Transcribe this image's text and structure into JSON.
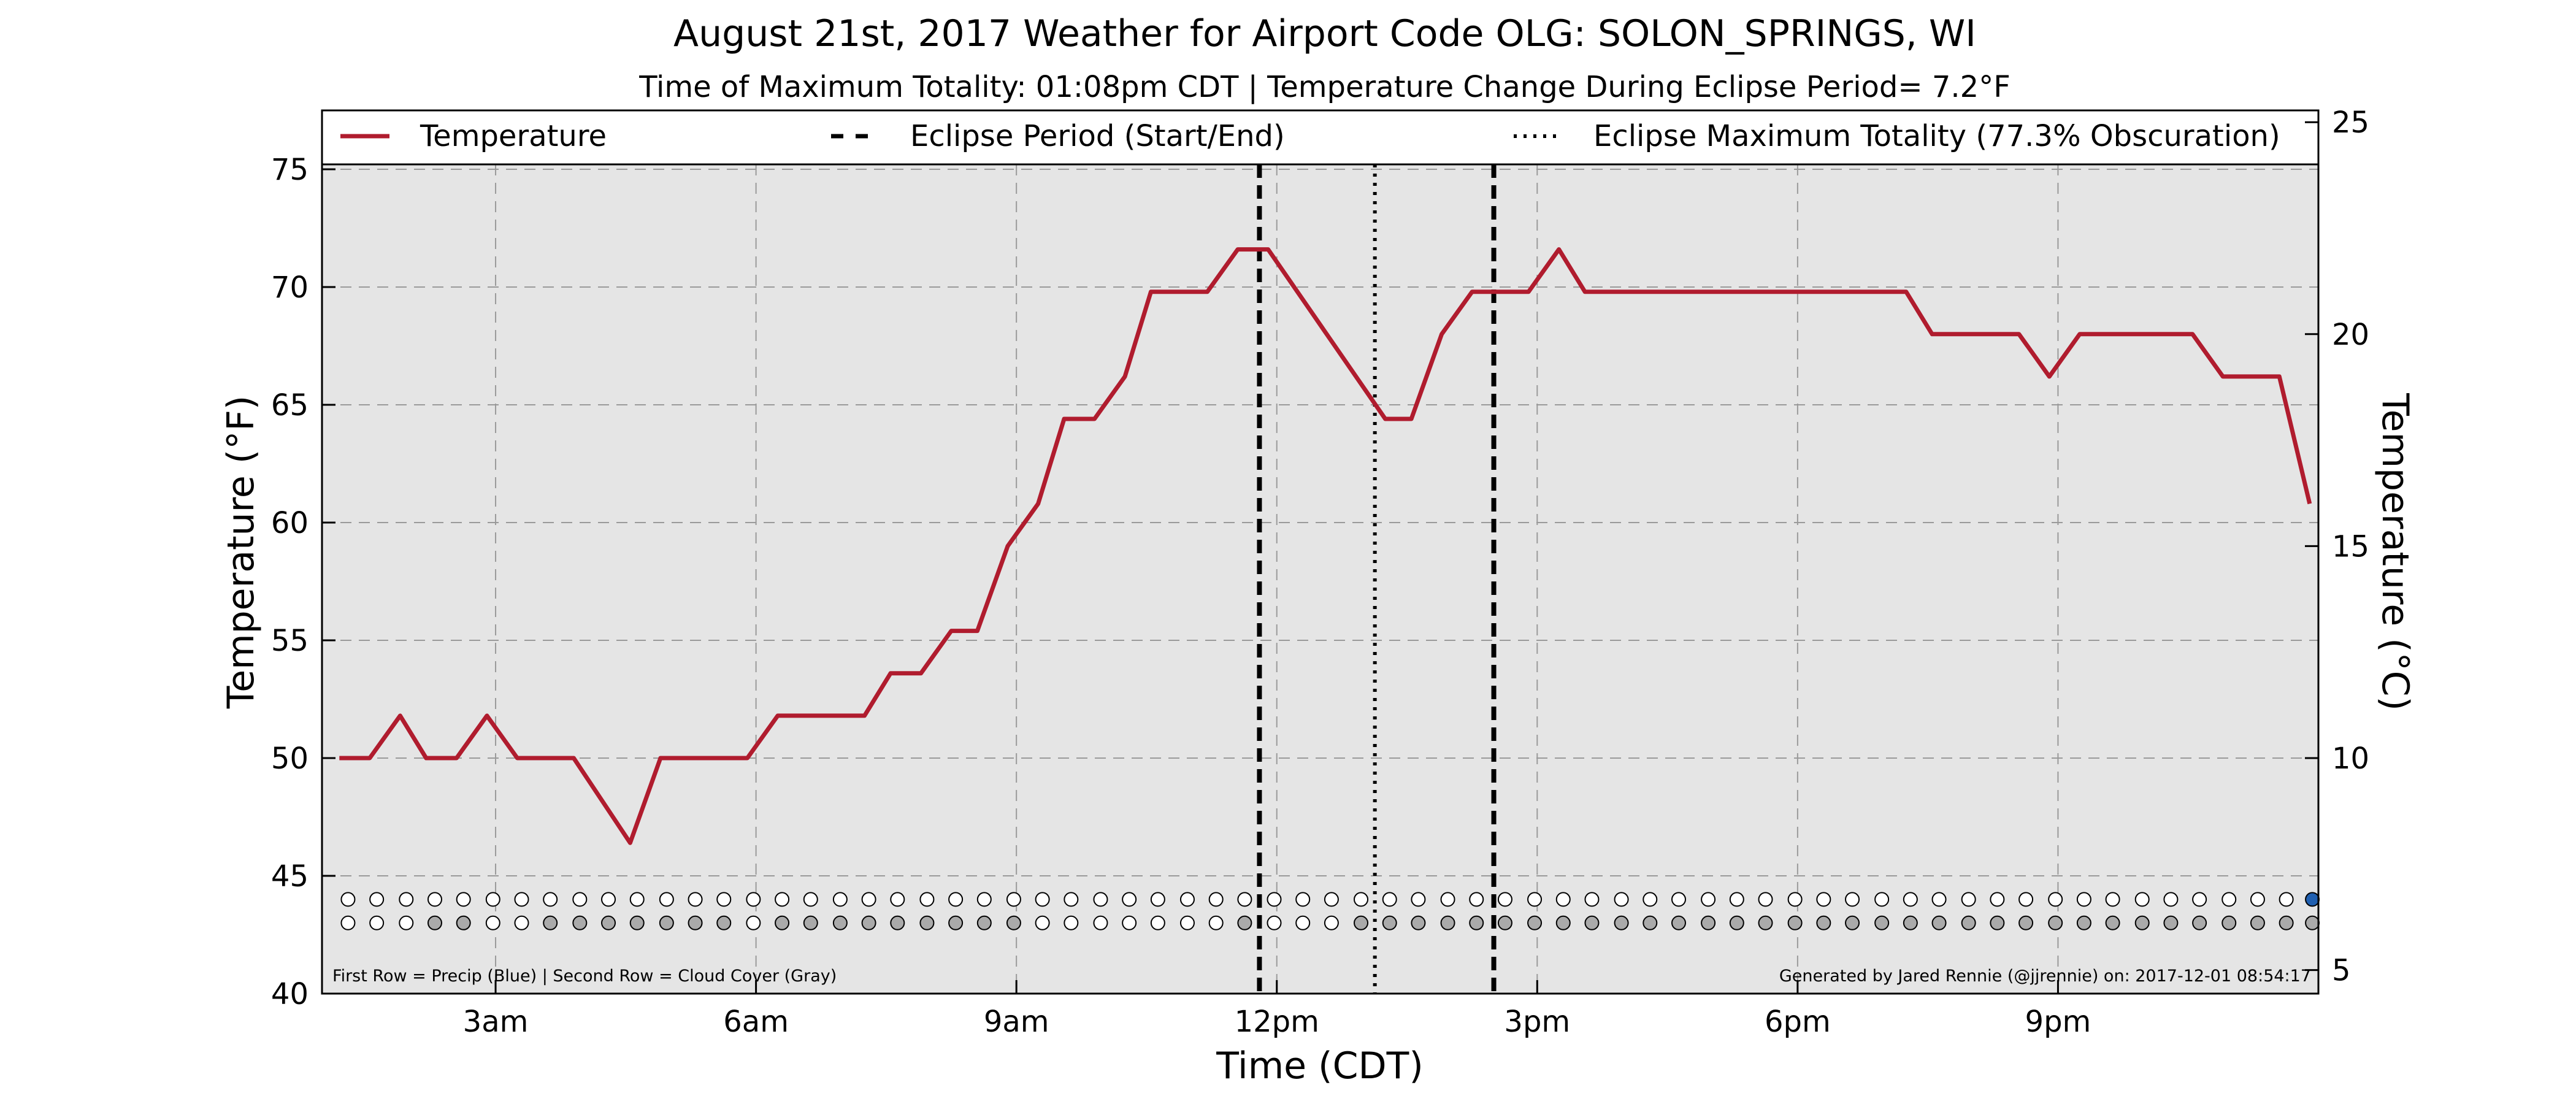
{
  "chart_data": {
    "type": "line",
    "title": "August 21st, 2017 Weather for Airport Code OLG: SOLON_SPRINGS, WI",
    "subtitle": "Time of Maximum Totality: 01:08pm CDT | Temperature Change During Eclipse Period= 7.2°F",
    "xlabel": "Time (CDT)",
    "ylabel": "Temperature (°F)",
    "ylabel_right": "Temperature (°C)",
    "xlim": [
      1.0,
      24.0
    ],
    "ylim": [
      40,
      77.5
    ],
    "ylim_right_c": [
      4.44,
      25.28
    ],
    "grid": true,
    "x_ticks": [
      {
        "x": 3,
        "label": "3am"
      },
      {
        "x": 6,
        "label": "6am"
      },
      {
        "x": 9,
        "label": "9am"
      },
      {
        "x": 12,
        "label": "12pm"
      },
      {
        "x": 15,
        "label": "3pm"
      },
      {
        "x": 18,
        "label": "6pm"
      },
      {
        "x": 21,
        "label": "9pm"
      }
    ],
    "y_ticks": [
      {
        "y": 40,
        "label": "40"
      },
      {
        "y": 45,
        "label": "45"
      },
      {
        "y": 50,
        "label": "50"
      },
      {
        "y": 55,
        "label": "55"
      },
      {
        "y": 60,
        "label": "60"
      },
      {
        "y": 65,
        "label": "65"
      },
      {
        "y": 70,
        "label": "70"
      },
      {
        "y": 75,
        "label": "75"
      }
    ],
    "y_ticks_right": [
      {
        "c": 5,
        "label": "5"
      },
      {
        "c": 10,
        "label": "10"
      },
      {
        "c": 15,
        "label": "15"
      },
      {
        "c": 20,
        "label": "20"
      },
      {
        "c": 25,
        "label": "25"
      }
    ],
    "legend": {
      "placement": "top",
      "entries": [
        {
          "label": "Temperature",
          "style": "solid",
          "color": "#b01c2e"
        },
        {
          "label": "Eclipse Period (Start/End)",
          "style": "dashed",
          "color": "#000000"
        },
        {
          "label": "Eclipse Maximum Totality (77.3% Obscuration)",
          "style": "dotted",
          "color": "#000000"
        }
      ]
    },
    "series": [
      {
        "name": "Temperature",
        "color": "#b01c2e",
        "points": [
          [
            1.2,
            50.0
          ],
          [
            1.55,
            50.0
          ],
          [
            1.9,
            51.8
          ],
          [
            2.2,
            50.0
          ],
          [
            2.55,
            50.0
          ],
          [
            2.9,
            51.8
          ],
          [
            3.25,
            50.0
          ],
          [
            3.55,
            50.0
          ],
          [
            3.9,
            50.0
          ],
          [
            4.55,
            46.4
          ],
          [
            4.9,
            50.0
          ],
          [
            5.25,
            50.0
          ],
          [
            5.9,
            50.0
          ],
          [
            6.25,
            51.8
          ],
          [
            6.9,
            51.8
          ],
          [
            7.25,
            51.8
          ],
          [
            7.55,
            53.6
          ],
          [
            7.9,
            53.6
          ],
          [
            8.25,
            55.4
          ],
          [
            8.55,
            55.4
          ],
          [
            8.9,
            59.0
          ],
          [
            9.25,
            60.8
          ],
          [
            9.55,
            64.4
          ],
          [
            9.9,
            64.4
          ],
          [
            10.25,
            66.2
          ],
          [
            10.55,
            69.8
          ],
          [
            11.2,
            69.8
          ],
          [
            11.55,
            71.6
          ],
          [
            11.9,
            71.6
          ],
          [
            13.25,
            64.4
          ],
          [
            13.55,
            64.4
          ],
          [
            13.9,
            68.0
          ],
          [
            14.25,
            69.8
          ],
          [
            14.9,
            69.8
          ],
          [
            15.25,
            71.6
          ],
          [
            15.55,
            69.8
          ],
          [
            19.25,
            69.8
          ],
          [
            19.55,
            68.0
          ],
          [
            20.55,
            68.0
          ],
          [
            20.9,
            66.2
          ],
          [
            21.25,
            68.0
          ],
          [
            22.55,
            68.0
          ],
          [
            22.9,
            66.2
          ],
          [
            23.55,
            66.2
          ],
          [
            23.9,
            60.8
          ]
        ]
      }
    ],
    "eclipse_start": 11.8,
    "eclipse_end": 14.5,
    "eclipse_max_totality": 13.13,
    "marker_rows": {
      "row_values_y": [
        44.0,
        43.0
      ],
      "precip_color": "#1f5fb0",
      "cloud_color": "#aaaaaa",
      "x": [
        1.3,
        1.63,
        1.97,
        2.3,
        2.63,
        2.97,
        3.3,
        3.63,
        3.97,
        4.3,
        4.63,
        4.97,
        5.3,
        5.63,
        5.97,
        6.3,
        6.63,
        6.97,
        7.3,
        7.63,
        7.97,
        8.3,
        8.63,
        8.97,
        9.3,
        9.63,
        9.97,
        10.3,
        10.63,
        10.97,
        11.3,
        11.63,
        11.97,
        12.3,
        12.63,
        12.97,
        13.3,
        13.63,
        13.97,
        14.3,
        14.63,
        14.97,
        15.3,
        15.63,
        15.97,
        16.3,
        16.63,
        16.97,
        17.3,
        17.63,
        17.97,
        18.3,
        18.63,
        18.97,
        19.3,
        19.63,
        19.97,
        20.3,
        20.63,
        20.97,
        21.3,
        21.63,
        21.97,
        22.3,
        22.63,
        22.97,
        23.3,
        23.63,
        23.93
      ],
      "precip": [
        0,
        0,
        0,
        0,
        0,
        0,
        0,
        0,
        0,
        0,
        0,
        0,
        0,
        0,
        0,
        0,
        0,
        0,
        0,
        0,
        0,
        0,
        0,
        0,
        0,
        0,
        0,
        0,
        0,
        0,
        0,
        0,
        0,
        0,
        0,
        0,
        0,
        0,
        0,
        0,
        0,
        0,
        0,
        0,
        0,
        0,
        0,
        0,
        0,
        0,
        0,
        0,
        0,
        0,
        0,
        0,
        0,
        0,
        0,
        0,
        0,
        0,
        0,
        0,
        0,
        0,
        0,
        0,
        1
      ],
      "cloud": [
        0,
        0,
        0,
        1,
        1,
        0,
        0,
        1,
        1,
        1,
        1,
        1,
        1,
        1,
        0,
        1,
        1,
        1,
        1,
        1,
        1,
        1,
        1,
        1,
        0,
        0,
        0,
        0,
        0,
        0,
        0,
        1,
        0,
        0,
        0,
        1,
        1,
        1,
        1,
        1,
        1,
        1,
        1,
        1,
        1,
        1,
        1,
        1,
        1,
        1,
        1,
        1,
        1,
        1,
        1,
        1,
        1,
        1,
        1,
        1,
        1,
        1,
        1,
        1,
        1,
        1,
        1,
        1,
        1
      ]
    },
    "footer_left": "First Row = Precip (Blue) | Second Row = Cloud Cover (Gray)",
    "footer_right": "Generated by Jared Rennie (@jjrennie) on: 2017-12-01 08:54:17"
  }
}
